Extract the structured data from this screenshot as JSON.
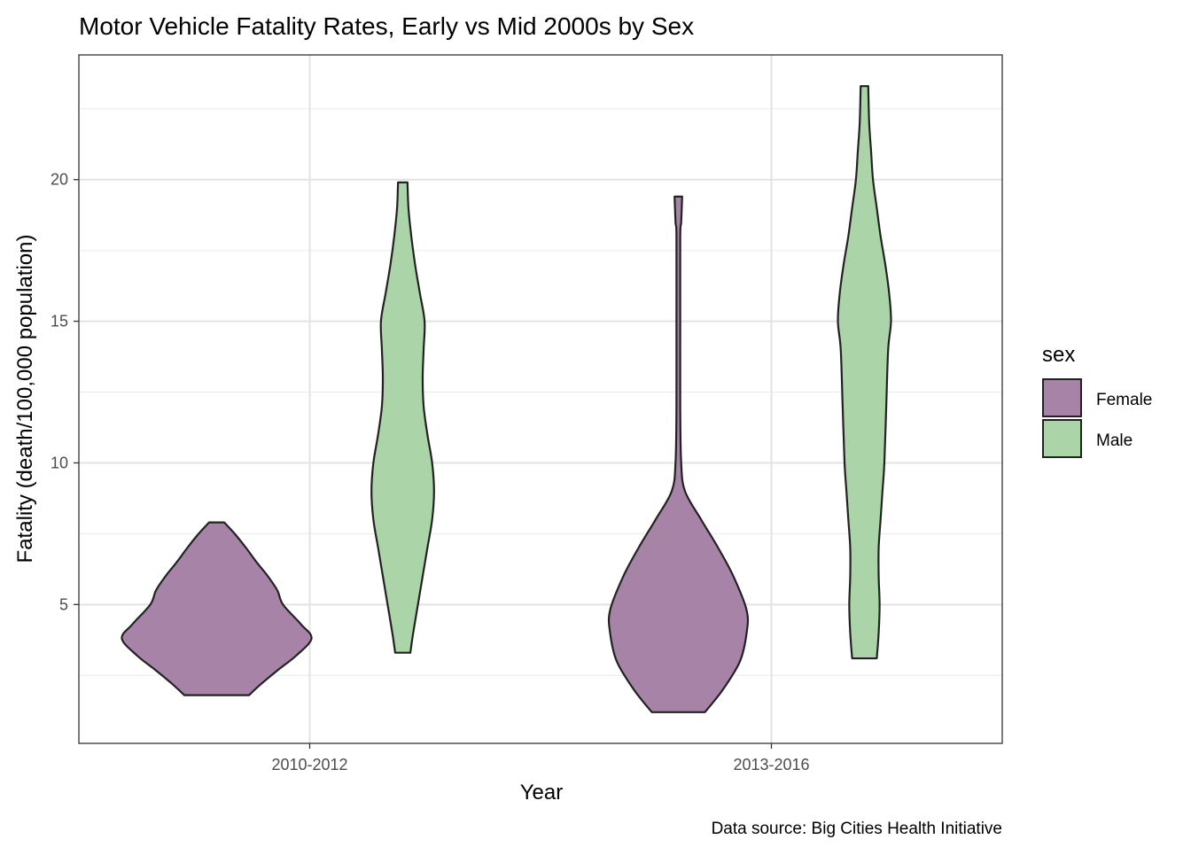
{
  "chart_data": {
    "type": "violin",
    "title": "Motor Vehicle Fatality Rates, Early vs Mid 2000s by Sex",
    "xlabel": "Year",
    "ylabel": "Fatality (death/100,000 population)",
    "caption": "Data source: Big Cities Health Initiative",
    "categories": [
      "2010-2012",
      "2013-2016"
    ],
    "ylim": [
      0.1,
      24.4
    ],
    "yticks": [
      5,
      10,
      15,
      20
    ],
    "grid": true,
    "legend": {
      "title": "sex",
      "position": "right",
      "entries": [
        "Female",
        "Male"
      ]
    },
    "colors": {
      "Female": "#A783A8",
      "Male": "#ABD4A9",
      "outline": "#222222"
    },
    "series": [
      {
        "name": "Female",
        "category": "2010-2012",
        "min": 1.8,
        "max": 7.9,
        "density_profile": [
          [
            1.8,
            0.34
          ],
          [
            2.2,
            0.47
          ],
          [
            2.7,
            0.65
          ],
          [
            3.2,
            0.84
          ],
          [
            3.8,
            1.0
          ],
          [
            4.3,
            0.89
          ],
          [
            5,
            0.7
          ],
          [
            5.5,
            0.64
          ],
          [
            6,
            0.54
          ],
          [
            6.5,
            0.42
          ],
          [
            7,
            0.31
          ],
          [
            7.5,
            0.19
          ],
          [
            7.9,
            0.08
          ]
        ]
      },
      {
        "name": "Male",
        "category": "2010-2012",
        "min": 3.3,
        "max": 19.9,
        "density_profile": [
          [
            3.3,
            0.08
          ],
          [
            4,
            0.11
          ],
          [
            5,
            0.16
          ],
          [
            6,
            0.21
          ],
          [
            7,
            0.26
          ],
          [
            8,
            0.31
          ],
          [
            9,
            0.33
          ],
          [
            10,
            0.31
          ],
          [
            11,
            0.26
          ],
          [
            12,
            0.22
          ],
          [
            13,
            0.21
          ],
          [
            14,
            0.22
          ],
          [
            15,
            0.23
          ],
          [
            16,
            0.18
          ],
          [
            17,
            0.13
          ],
          [
            18,
            0.09
          ],
          [
            19,
            0.06
          ],
          [
            19.9,
            0.05
          ]
        ]
      },
      {
        "name": "Female",
        "category": "2013-2016",
        "min": 1.2,
        "max": 19.4,
        "density_profile": [
          [
            1.2,
            0.28
          ],
          [
            2,
            0.47
          ],
          [
            3,
            0.65
          ],
          [
            4,
            0.72
          ],
          [
            4.8,
            0.72
          ],
          [
            6,
            0.58
          ],
          [
            7,
            0.42
          ],
          [
            8,
            0.24
          ],
          [
            9,
            0.07
          ],
          [
            10,
            0.03
          ],
          [
            12,
            0.02
          ],
          [
            15,
            0.02
          ],
          [
            18,
            0.02
          ],
          [
            18.5,
            0.03
          ],
          [
            19.4,
            0.04
          ]
        ]
      },
      {
        "name": "Male",
        "category": "2013-2016",
        "min": 3.1,
        "max": 23.3,
        "density_profile": [
          [
            3.1,
            0.13
          ],
          [
            4,
            0.15
          ],
          [
            5,
            0.16
          ],
          [
            6,
            0.15
          ],
          [
            7,
            0.15
          ],
          [
            8,
            0.17
          ],
          [
            9,
            0.19
          ],
          [
            10,
            0.21
          ],
          [
            12,
            0.23
          ],
          [
            14,
            0.25
          ],
          [
            15,
            0.28
          ],
          [
            16,
            0.26
          ],
          [
            17,
            0.22
          ],
          [
            18,
            0.17
          ],
          [
            19,
            0.13
          ],
          [
            20,
            0.09
          ],
          [
            21,
            0.07
          ],
          [
            22,
            0.05
          ],
          [
            23.3,
            0.04
          ]
        ]
      }
    ]
  }
}
